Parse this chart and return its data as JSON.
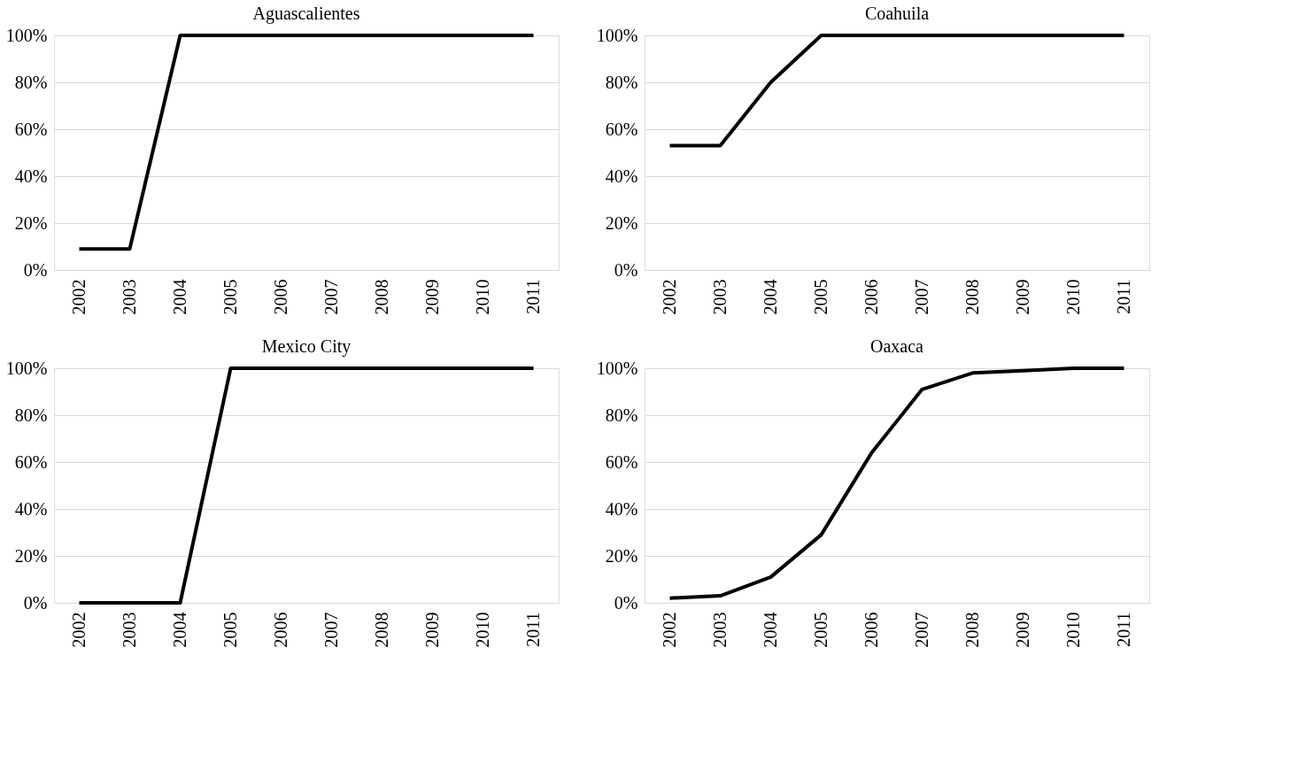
{
  "chart_data": [
    {
      "type": "line",
      "title": "Aguascalientes",
      "categories": [
        "2002",
        "2003",
        "2004",
        "2005",
        "2006",
        "2007",
        "2008",
        "2009",
        "2010",
        "2011"
      ],
      "series": [
        {
          "color": "#000000",
          "values": [
            9,
            9,
            100,
            100,
            100,
            100,
            100,
            100,
            100,
            100
          ]
        }
      ],
      "ylim": [
        0,
        100
      ],
      "yticks": [
        {
          "value": 0,
          "label": "0%"
        },
        {
          "value": 20,
          "label": "20%"
        },
        {
          "value": 40,
          "label": "40%"
        },
        {
          "value": 60,
          "label": "60%"
        },
        {
          "value": 80,
          "label": "80%"
        },
        {
          "value": 100,
          "label": "100%"
        }
      ],
      "grid": "y"
    },
    {
      "type": "line",
      "title": "Coahuila",
      "categories": [
        "2002",
        "2003",
        "2004",
        "2005",
        "2006",
        "2007",
        "2008",
        "2009",
        "2010",
        "2011"
      ],
      "series": [
        {
          "color": "#000000",
          "values": [
            53,
            53,
            80,
            100,
            100,
            100,
            100,
            100,
            100,
            100
          ]
        }
      ],
      "ylim": [
        0,
        100
      ],
      "yticks": [
        {
          "value": 0,
          "label": "0%"
        },
        {
          "value": 20,
          "label": "20%"
        },
        {
          "value": 40,
          "label": "40%"
        },
        {
          "value": 60,
          "label": "60%"
        },
        {
          "value": 80,
          "label": "80%"
        },
        {
          "value": 100,
          "label": "100%"
        }
      ],
      "grid": "y"
    },
    {
      "type": "line",
      "title": "Mexico City",
      "categories": [
        "2002",
        "2003",
        "2004",
        "2005",
        "2006",
        "2007",
        "2008",
        "2009",
        "2010",
        "2011"
      ],
      "series": [
        {
          "color": "#000000",
          "values": [
            0,
            0,
            0,
            100,
            100,
            100,
            100,
            100,
            100,
            100
          ]
        }
      ],
      "ylim": [
        0,
        100
      ],
      "yticks": [
        {
          "value": 0,
          "label": "0%"
        },
        {
          "value": 20,
          "label": "20%"
        },
        {
          "value": 40,
          "label": "40%"
        },
        {
          "value": 60,
          "label": "60%"
        },
        {
          "value": 80,
          "label": "80%"
        },
        {
          "value": 100,
          "label": "100%"
        }
      ],
      "grid": "y"
    },
    {
      "type": "line",
      "title": "Oaxaca",
      "categories": [
        "2002",
        "2003",
        "2004",
        "2005",
        "2006",
        "2007",
        "2008",
        "2009",
        "2010",
        "2011"
      ],
      "series": [
        {
          "color": "#000000",
          "values": [
            2,
            3,
            11,
            29,
            64,
            91,
            98,
            99,
            100,
            100
          ]
        }
      ],
      "ylim": [
        0,
        100
      ],
      "yticks": [
        {
          "value": 0,
          "label": "0%"
        },
        {
          "value": 20,
          "label": "20%"
        },
        {
          "value": 40,
          "label": "40%"
        },
        {
          "value": 60,
          "label": "60%"
        },
        {
          "value": 80,
          "label": "80%"
        },
        {
          "value": 100,
          "label": "100%"
        }
      ],
      "grid": "y"
    }
  ]
}
